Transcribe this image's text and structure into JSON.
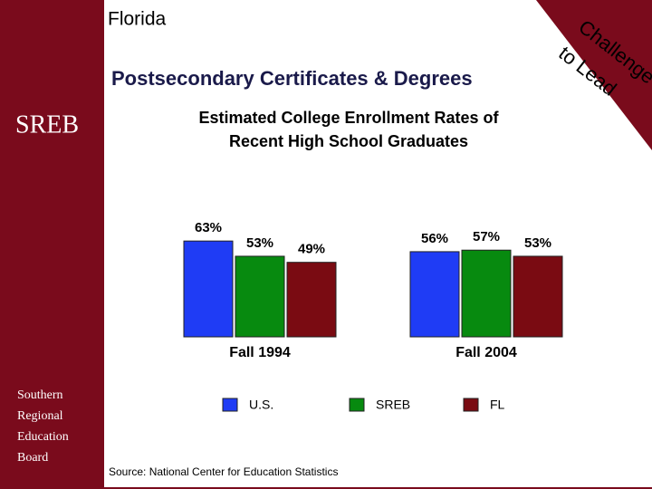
{
  "header": {
    "state": "Florida",
    "title": "Postsecondary Certificates & Degrees",
    "logo": "SREB",
    "organization": [
      "Southern",
      "Regional",
      "Education",
      "Board"
    ],
    "tagline": [
      "Challenge",
      "to Lead"
    ]
  },
  "chart_data": {
    "type": "bar",
    "title": [
      "Estimated College Enrollment Rates of",
      "Recent High School Graduates"
    ],
    "categories": [
      "Fall 1994",
      "Fall 2004"
    ],
    "series": [
      {
        "name": "U.S.",
        "color": "#1f3cf5",
        "values": [
          63,
          56
        ],
        "value_labels": [
          "63%",
          "56%"
        ]
      },
      {
        "name": "SREB",
        "color": "#078a0f",
        "values": [
          53,
          57
        ],
        "value_labels": [
          "53%",
          "57%"
        ]
      },
      {
        "name": "FL",
        "color": "#7a0b12",
        "values": [
          49,
          53
        ],
        "value_labels": [
          "49%",
          "53%"
        ]
      }
    ],
    "source": "Source: National Center for Education Statistics"
  }
}
